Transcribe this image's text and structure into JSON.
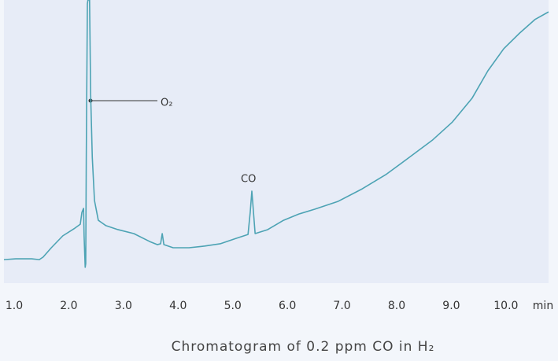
{
  "chart_data": {
    "type": "line",
    "title": "Chromatogram of 0.2 ppm CO in H₂",
    "x_label": "min",
    "color": "#4da3b4",
    "xlim": [
      0.813,
      10.78
    ],
    "ylim": [
      0,
      100
    ],
    "xticks": [
      {
        "value": 1,
        "label": "1.0"
      },
      {
        "value": 2,
        "label": "2.0"
      },
      {
        "value": 3,
        "label": "3.0"
      },
      {
        "value": 4,
        "label": "4.0"
      },
      {
        "value": 5,
        "label": "5.0"
      },
      {
        "value": 6,
        "label": "6.0"
      },
      {
        "value": 7,
        "label": "7.0"
      },
      {
        "value": 8,
        "label": "8.0"
      },
      {
        "value": 9,
        "label": "9.0"
      },
      {
        "value": 10,
        "label": "10.0"
      }
    ],
    "x": [
      0.813,
      1.03,
      1.32,
      1.46,
      1.53,
      1.68,
      1.89,
      2.11,
      2.21,
      2.24,
      2.27,
      2.28,
      2.3,
      2.31,
      2.32,
      2.34,
      2.35,
      2.38,
      2.4,
      2.43,
      2.47,
      2.54,
      2.68,
      2.9,
      3.19,
      3.48,
      3.62,
      3.68,
      3.71,
      3.74,
      3.91,
      4.2,
      4.49,
      4.77,
      5.06,
      5.28,
      5.32,
      5.35,
      5.38,
      5.41,
      5.64,
      5.93,
      6.21,
      6.5,
      6.93,
      7.37,
      7.8,
      8.23,
      8.66,
      9.02,
      9.38,
      9.67,
      9.96,
      10.25,
      10.53,
      10.78
    ],
    "values": [
      8.3,
      8.6,
      8.6,
      8.3,
      9.2,
      12.5,
      16.7,
      19.4,
      20.8,
      25,
      26.4,
      16.7,
      5.6,
      6.9,
      44.4,
      98.6,
      100,
      100,
      66.7,
      44.4,
      29.2,
      22.2,
      20.3,
      18.9,
      17.5,
      14.7,
      13.6,
      13.9,
      17.5,
      13.6,
      12.5,
      12.5,
      13.1,
      13.9,
      15.8,
      17.2,
      25,
      32.5,
      25,
      17.5,
      18.9,
      22.2,
      24.4,
      26.1,
      28.9,
      33.3,
      38.3,
      44.4,
      50.6,
      56.9,
      65.3,
      75,
      82.8,
      88.3,
      93.1,
      95.8
    ],
    "annotations": [
      {
        "text": "O₂"
      },
      {
        "text": "CO"
      }
    ]
  }
}
